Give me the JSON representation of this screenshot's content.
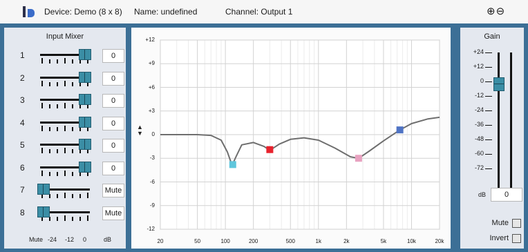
{
  "header": {
    "device": "Device: Demo (8 x 8)",
    "name": "Name: undefined",
    "channel": "Channel: Output 1",
    "zoom_in": "⊕",
    "zoom_out": "⊖"
  },
  "mixer": {
    "title": "Input Mixer",
    "channels": [
      {
        "label": "1",
        "value": "0",
        "level": 1.0
      },
      {
        "label": "2",
        "value": "0",
        "level": 1.0
      },
      {
        "label": "3",
        "value": "0",
        "level": 1.0
      },
      {
        "label": "4",
        "value": "0",
        "level": 1.0
      },
      {
        "label": "5",
        "value": "0",
        "level": 1.0
      },
      {
        "label": "6",
        "value": "0",
        "level": 1.0
      },
      {
        "label": "7",
        "value": "Mute",
        "level": 0.0
      },
      {
        "label": "8",
        "value": "Mute",
        "level": 0.0
      }
    ],
    "scale": [
      "Mute",
      "-24",
      "-12",
      "0",
      "dB"
    ]
  },
  "eq": {
    "y_ticks": [
      "+12",
      "+9",
      "+6",
      "+3",
      "0",
      "-3",
      "-6",
      "-9",
      "-12"
    ],
    "x_ticks": [
      "20",
      "50",
      "100",
      "200",
      "500",
      "1k",
      "2k",
      "5k",
      "10k",
      "20k"
    ],
    "adjust_icon": "up-down-arrows-icon",
    "curve": [
      {
        "f": 20,
        "db": 0
      },
      {
        "f": 50,
        "db": 0
      },
      {
        "f": 70,
        "db": -0.1
      },
      {
        "f": 90,
        "db": -0.7
      },
      {
        "f": 105,
        "db": -2.2
      },
      {
        "f": 118,
        "db": -3.9
      },
      {
        "f": 130,
        "db": -2.8
      },
      {
        "f": 150,
        "db": -1.3
      },
      {
        "f": 200,
        "db": -1.0
      },
      {
        "f": 260,
        "db": -1.5
      },
      {
        "f": 300,
        "db": -2.0
      },
      {
        "f": 380,
        "db": -1.2
      },
      {
        "f": 500,
        "db": -0.6
      },
      {
        "f": 700,
        "db": -0.4
      },
      {
        "f": 1000,
        "db": -0.7
      },
      {
        "f": 1500,
        "db": -1.7
      },
      {
        "f": 2200,
        "db": -2.8
      },
      {
        "f": 2700,
        "db": -3.0
      },
      {
        "f": 3500,
        "db": -2.1
      },
      {
        "f": 5000,
        "db": -0.8
      },
      {
        "f": 7500,
        "db": 0.6
      },
      {
        "f": 10000,
        "db": 1.4
      },
      {
        "f": 15000,
        "db": 2.0
      },
      {
        "f": 20000,
        "db": 2.2
      }
    ],
    "nodes": [
      {
        "f": 120,
        "db": -3.8,
        "color": "#5fc6dc"
      },
      {
        "f": 300,
        "db": -1.9,
        "color": "#e8222d"
      },
      {
        "f": 2700,
        "db": -3.0,
        "color": "#e8a2c0"
      },
      {
        "f": 7500,
        "db": 0.6,
        "color": "#4f73c4"
      }
    ]
  },
  "gain": {
    "title": "Gain",
    "scale": [
      "+24",
      "+12",
      "0",
      "-12",
      "-24",
      "-36",
      "-48",
      "-60",
      "-72"
    ],
    "db_label": "dB",
    "value": "0",
    "mute_label": "Mute",
    "invert_label": "Invert"
  }
}
